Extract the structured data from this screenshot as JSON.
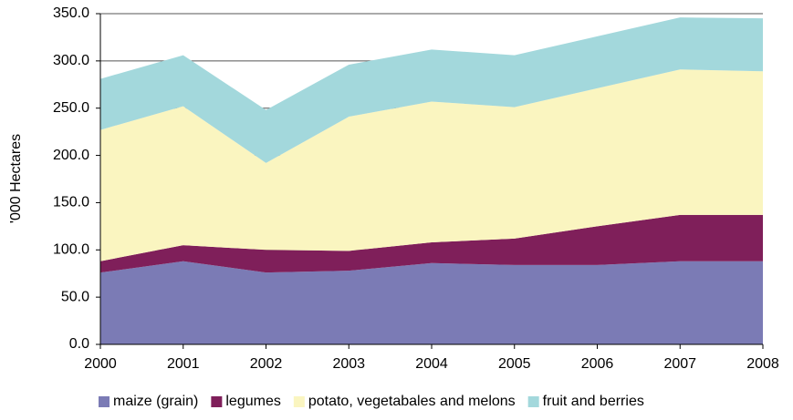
{
  "chart_data": {
    "type": "stacked-area",
    "y_label": "'000 Hectares",
    "x": [
      2000,
      2001,
      2002,
      2003,
      2004,
      2005,
      2006,
      2007,
      2008
    ],
    "xlim": [
      2000,
      2008
    ],
    "xticks": [
      2000,
      2001,
      2002,
      2003,
      2004,
      2005,
      2006,
      2007,
      2008
    ],
    "ylim": [
      0,
      350
    ],
    "yticks": [
      {
        "value": 0,
        "label": "0.0"
      },
      {
        "value": 50,
        "label": "50.0"
      },
      {
        "value": 100,
        "label": "100.0"
      },
      {
        "value": 150,
        "label": "150.0"
      },
      {
        "value": 200,
        "label": "200.0"
      },
      {
        "value": 250,
        "label": "250.0"
      },
      {
        "value": 300,
        "label": "300.0"
      },
      {
        "value": 350,
        "label": "350.0"
      }
    ],
    "grid": true,
    "legend": "bottom",
    "series": [
      {
        "name": "maize (grain)",
        "color": "#7b7bb5",
        "values": [
          76,
          88,
          76,
          78,
          86,
          84,
          84,
          88,
          88
        ]
      },
      {
        "name": "legumes",
        "color": "#7f1f5a",
        "values": [
          12,
          17,
          24,
          21,
          22,
          28,
          41,
          49,
          49
        ]
      },
      {
        "name": "potato, vegetabales and melons",
        "color": "#faf5c0",
        "values": [
          139,
          147,
          92,
          142,
          149,
          139,
          146,
          154,
          152
        ]
      },
      {
        "name": "fruit and berries",
        "color": "#a3d8dc",
        "values": [
          54,
          54,
          56,
          55,
          55,
          55,
          55,
          55,
          56
        ]
      }
    ]
  }
}
